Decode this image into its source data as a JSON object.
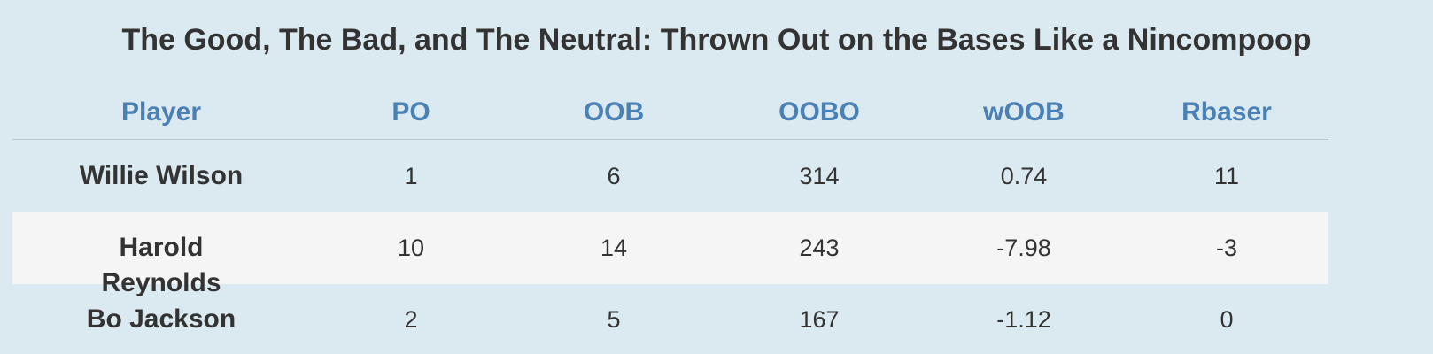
{
  "title": "The Good, The Bad, and The Neutral: Thrown Out on the Bases Like a Nincompoop",
  "table": {
    "columns": [
      "Player",
      "PO",
      "OOB",
      "OOBO",
      "wOOB",
      "Rbaser"
    ],
    "rows": [
      [
        "Willie Wilson",
        1,
        6,
        314,
        0.74,
        11
      ],
      [
        "Harold Reynolds",
        10,
        14,
        243,
        -7.98,
        -3
      ],
      [
        "Bo Jackson",
        2,
        5,
        167,
        -1.12,
        0
      ]
    ]
  }
}
